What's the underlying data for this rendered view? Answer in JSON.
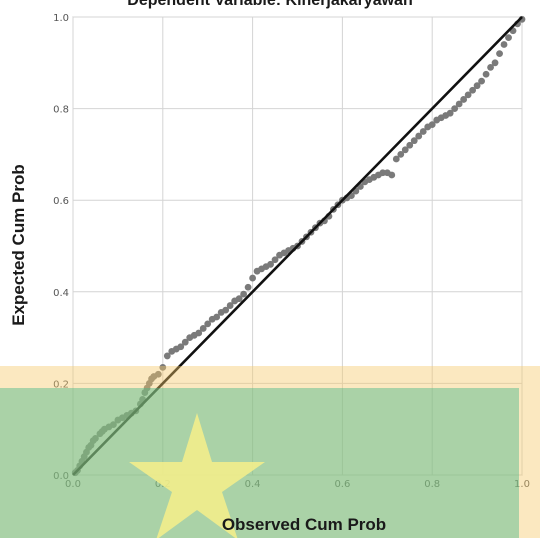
{
  "chart_data": {
    "type": "scatter",
    "title": "Dependent Variable: Kinerjakaryawan",
    "xlabel": "Observed Cum Prob",
    "ylabel": "Expected Cum Prob",
    "xlim": [
      0,
      1
    ],
    "ylim": [
      0,
      1
    ],
    "x_ticks": [
      "0.0",
      "0.2",
      "0.4",
      "0.6",
      "0.8",
      "1.0"
    ],
    "y_ticks": [
      "0.0",
      "0.2",
      "0.4",
      "0.6",
      "0.8",
      "1.0"
    ],
    "grid": true,
    "reference_line": {
      "x": [
        0,
        1
      ],
      "y": [
        0,
        1
      ],
      "color": "#111111"
    },
    "point_color": "#7a7a7a",
    "points": [
      [
        0.005,
        0.005
      ],
      [
        0.01,
        0.01
      ],
      [
        0.015,
        0.02
      ],
      [
        0.02,
        0.03
      ],
      [
        0.025,
        0.04
      ],
      [
        0.03,
        0.05
      ],
      [
        0.035,
        0.06
      ],
      [
        0.04,
        0.065
      ],
      [
        0.045,
        0.075
      ],
      [
        0.05,
        0.08
      ],
      [
        0.06,
        0.09
      ],
      [
        0.065,
        0.095
      ],
      [
        0.07,
        0.1
      ],
      [
        0.08,
        0.105
      ],
      [
        0.09,
        0.11
      ],
      [
        0.1,
        0.12
      ],
      [
        0.11,
        0.125
      ],
      [
        0.12,
        0.13
      ],
      [
        0.13,
        0.135
      ],
      [
        0.14,
        0.14
      ],
      [
        0.15,
        0.155
      ],
      [
        0.155,
        0.165
      ],
      [
        0.16,
        0.18
      ],
      [
        0.165,
        0.19
      ],
      [
        0.17,
        0.2
      ],
      [
        0.175,
        0.21
      ],
      [
        0.18,
        0.215
      ],
      [
        0.19,
        0.22
      ],
      [
        0.2,
        0.235
      ],
      [
        0.21,
        0.26
      ],
      [
        0.22,
        0.27
      ],
      [
        0.23,
        0.275
      ],
      [
        0.24,
        0.28
      ],
      [
        0.25,
        0.29
      ],
      [
        0.26,
        0.3
      ],
      [
        0.27,
        0.305
      ],
      [
        0.28,
        0.31
      ],
      [
        0.29,
        0.32
      ],
      [
        0.3,
        0.33
      ],
      [
        0.31,
        0.34
      ],
      [
        0.32,
        0.345
      ],
      [
        0.33,
        0.355
      ],
      [
        0.34,
        0.36
      ],
      [
        0.35,
        0.37
      ],
      [
        0.36,
        0.38
      ],
      [
        0.37,
        0.385
      ],
      [
        0.38,
        0.395
      ],
      [
        0.39,
        0.41
      ],
      [
        0.4,
        0.43
      ],
      [
        0.41,
        0.445
      ],
      [
        0.42,
        0.45
      ],
      [
        0.43,
        0.455
      ],
      [
        0.44,
        0.46
      ],
      [
        0.45,
        0.47
      ],
      [
        0.46,
        0.48
      ],
      [
        0.47,
        0.485
      ],
      [
        0.48,
        0.49
      ],
      [
        0.49,
        0.495
      ],
      [
        0.5,
        0.5
      ],
      [
        0.51,
        0.51
      ],
      [
        0.52,
        0.52
      ],
      [
        0.53,
        0.53
      ],
      [
        0.54,
        0.54
      ],
      [
        0.55,
        0.55
      ],
      [
        0.56,
        0.555
      ],
      [
        0.57,
        0.565
      ],
      [
        0.58,
        0.58
      ],
      [
        0.59,
        0.59
      ],
      [
        0.6,
        0.6
      ],
      [
        0.61,
        0.605
      ],
      [
        0.62,
        0.61
      ],
      [
        0.63,
        0.62
      ],
      [
        0.64,
        0.63
      ],
      [
        0.65,
        0.64
      ],
      [
        0.66,
        0.645
      ],
      [
        0.67,
        0.65
      ],
      [
        0.68,
        0.655
      ],
      [
        0.69,
        0.66
      ],
      [
        0.7,
        0.66
      ],
      [
        0.71,
        0.655
      ],
      [
        0.72,
        0.69
      ],
      [
        0.73,
        0.7
      ],
      [
        0.74,
        0.71
      ],
      [
        0.75,
        0.72
      ],
      [
        0.76,
        0.73
      ],
      [
        0.77,
        0.74
      ],
      [
        0.78,
        0.75
      ],
      [
        0.79,
        0.76
      ],
      [
        0.8,
        0.765
      ],
      [
        0.81,
        0.775
      ],
      [
        0.82,
        0.78
      ],
      [
        0.83,
        0.785
      ],
      [
        0.84,
        0.79
      ],
      [
        0.85,
        0.8
      ],
      [
        0.86,
        0.81
      ],
      [
        0.87,
        0.82
      ],
      [
        0.88,
        0.83
      ],
      [
        0.89,
        0.84
      ],
      [
        0.9,
        0.85
      ],
      [
        0.91,
        0.86
      ],
      [
        0.92,
        0.875
      ],
      [
        0.93,
        0.89
      ],
      [
        0.94,
        0.9
      ],
      [
        0.95,
        0.92
      ],
      [
        0.96,
        0.94
      ],
      [
        0.97,
        0.955
      ],
      [
        0.98,
        0.97
      ],
      [
        0.99,
        0.985
      ],
      [
        1.0,
        0.995
      ]
    ]
  }
}
